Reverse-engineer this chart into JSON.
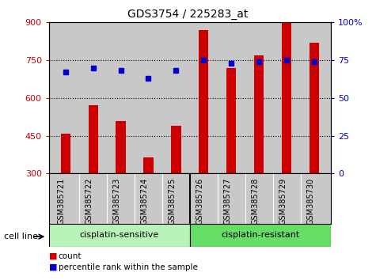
{
  "title": "GDS3754 / 225283_at",
  "samples": [
    "GSM385721",
    "GSM385722",
    "GSM385723",
    "GSM385724",
    "GSM385725",
    "GSM385726",
    "GSM385727",
    "GSM385728",
    "GSM385729",
    "GSM385730"
  ],
  "counts": [
    460,
    570,
    510,
    365,
    490,
    870,
    720,
    770,
    900,
    820
  ],
  "percentile_ranks": [
    67,
    70,
    68,
    63,
    68,
    75,
    73,
    74,
    75,
    74
  ],
  "group_labels": [
    "cisplatin-sensitive",
    "cisplatin-resistant"
  ],
  "group_split": 5,
  "ylim_left": [
    300,
    900
  ],
  "ylim_right": [
    0,
    100
  ],
  "yticks_left": [
    300,
    450,
    600,
    750,
    900
  ],
  "yticks_right": [
    0,
    25,
    50,
    75,
    100
  ],
  "ytick_right_labels": [
    "0",
    "25",
    "50",
    "75",
    "100%"
  ],
  "grid_lines": [
    450,
    600,
    750
  ],
  "bar_color": "#cc0000",
  "dot_color": "#0000cc",
  "group_color_sensitive": "#b8f4b8",
  "group_color_resistant": "#66dd66",
  "cell_line_label": "cell line",
  "legend_count": "count",
  "legend_percentile": "percentile rank within the sample",
  "background_color": "#ffffff",
  "plot_bg_color": "#c8c8c8",
  "tick_label_bg": "#c8c8c8",
  "bar_width": 0.35,
  "title_fontsize": 10,
  "tick_fontsize": 8,
  "label_fontsize": 7,
  "group_fontsize": 8,
  "legend_fontsize": 8
}
